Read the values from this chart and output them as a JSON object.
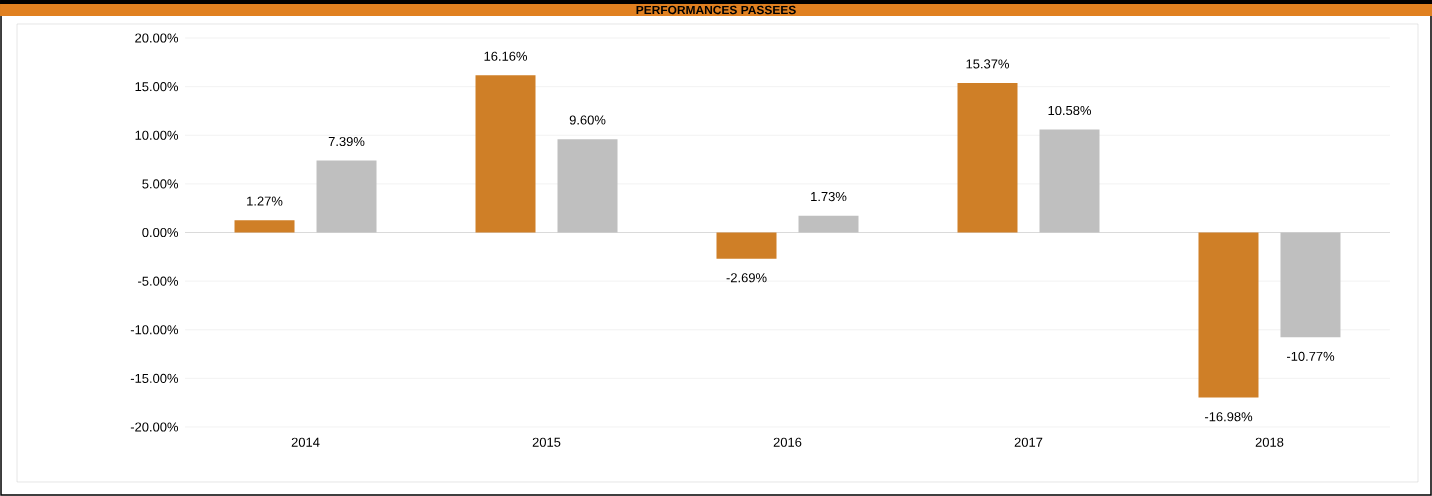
{
  "chart_data": {
    "type": "bar",
    "title": "PERFORMANCES PASSEES",
    "categories": [
      "2014",
      "2015",
      "2016",
      "2017",
      "2018"
    ],
    "series": [
      {
        "color": "#cf7f27",
        "values": [
          1.27,
          16.16,
          -2.69,
          15.37,
          -16.98
        ],
        "value_labels": [
          "1.27%",
          "16.16%",
          "-2.69%",
          "15.37%",
          "-16.98%"
        ]
      },
      {
        "color": "#bfbfbf",
        "values": [
          7.39,
          9.6,
          1.73,
          10.58,
          -10.77
        ],
        "value_labels": [
          "7.39%",
          "9.60%",
          "1.73%",
          "10.58%",
          "-10.77%"
        ]
      }
    ],
    "ylim": [
      -20,
      20
    ],
    "yticks": [
      {
        "value": -20,
        "label": "-20.00%"
      },
      {
        "value": -15,
        "label": "-15.00%"
      },
      {
        "value": -10,
        "label": "-10.00%"
      },
      {
        "value": -5,
        "label": "-5.00%"
      },
      {
        "value": 0,
        "label": "0.00%"
      },
      {
        "value": 5,
        "label": "5.00%"
      },
      {
        "value": 10,
        "label": "10.00%"
      },
      {
        "value": 15,
        "label": "15.00%"
      },
      {
        "value": 20,
        "label": "20.00%"
      }
    ],
    "grid": "y"
  }
}
